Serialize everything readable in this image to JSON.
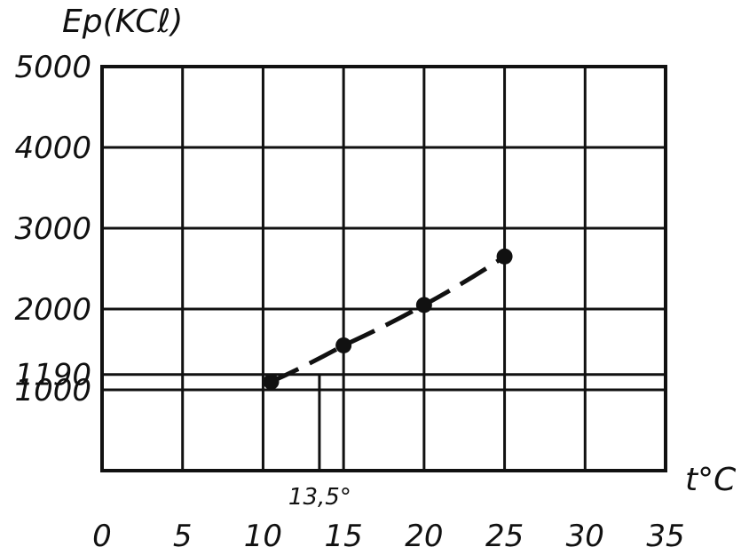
{
  "chart_data": {
    "type": "line",
    "title": "",
    "xlabel": "t°C",
    "ylabel": "Ep(KCℓ)",
    "xlim": [
      0,
      35
    ],
    "ylim": [
      0,
      5000
    ],
    "x_ticks": [
      0,
      5,
      10,
      15,
      20,
      25,
      30,
      35
    ],
    "x_tick_labels": [
      "0",
      "5",
      "10",
      "15",
      "20",
      "25",
      "30",
      "35"
    ],
    "y_ticks": [
      5000,
      4000,
      3000,
      2000,
      1190,
      1000
    ],
    "y_tick_labels": [
      "5000",
      "4000",
      "3000",
      "2000",
      "1190",
      "1000"
    ],
    "grid": true,
    "series": [
      {
        "x": [
          10.5,
          15,
          20,
          25
        ],
        "y": [
          1100,
          1550,
          2050,
          2650
        ],
        "style": "dashed",
        "markers": true
      }
    ],
    "annotations": [
      {
        "text": "13,5°",
        "x": 13.5,
        "y": 1190
      }
    ]
  }
}
